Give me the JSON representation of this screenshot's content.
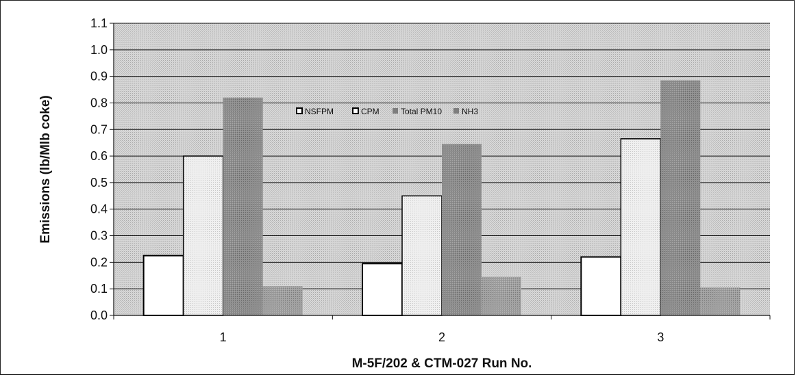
{
  "chart_data": {
    "type": "bar",
    "title": "",
    "xlabel": "M-5F/202 & CTM-027 Run No.",
    "ylabel": "Emissions  (lb/Mlb coke)",
    "ylim": [
      0,
      1.1
    ],
    "yticks": [
      "0.0",
      "0.1",
      "0.2",
      "0.3",
      "0.4",
      "0.5",
      "0.6",
      "0.7",
      "0.8",
      "0.9",
      "1.0",
      "1.1"
    ],
    "categories": [
      "1",
      "2",
      "3"
    ],
    "grid": true,
    "legend_position": "top-center",
    "series": [
      {
        "name": "NSFPM",
        "values": [
          0.225,
          0.195,
          0.22
        ],
        "color": "#ffffff"
      },
      {
        "name": "CPM",
        "values": [
          0.6,
          0.45,
          0.665
        ],
        "color": "#e6e6e6"
      },
      {
        "name": "Total PM10",
        "values": [
          0.82,
          0.645,
          0.885
        ],
        "color": "#8a8a8a"
      },
      {
        "name": "NH3",
        "values": [
          0.11,
          0.145,
          0.105
        ],
        "color": "#9c9c9c"
      }
    ]
  },
  "colors": {
    "plot_background": "#d9d9d9",
    "gridline": "#111111",
    "bar_outline": "#000000"
  }
}
